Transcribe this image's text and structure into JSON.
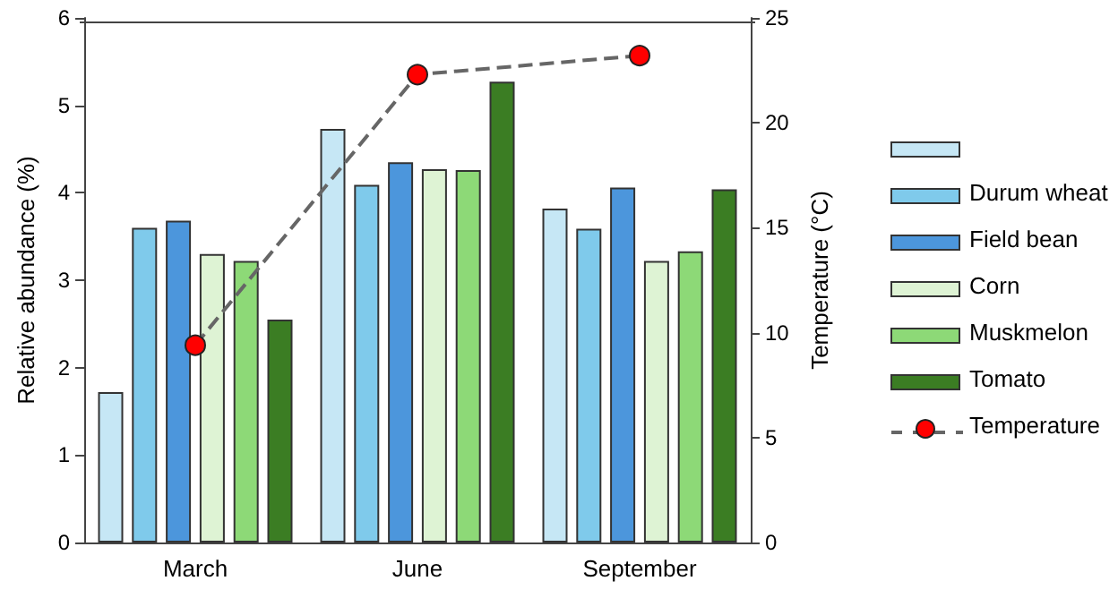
{
  "chart_data": {
    "type": "bar",
    "categories": [
      "March",
      "June",
      "September"
    ],
    "ylabel": "Relative abundance (%)",
    "y2label": "Temperature (°C)",
    "ylim": [
      0,
      6
    ],
    "yticks": [
      0,
      1,
      2,
      3,
      4,
      5,
      6
    ],
    "y2lim": [
      0,
      25
    ],
    "y2ticks": [
      0,
      5,
      10,
      15,
      20,
      25
    ],
    "grid": false,
    "legend": "right",
    "series": [
      {
        "color": "#c6e7f5",
        "values": [
          1.72,
          4.73,
          3.82
        ]
      },
      {
        "name": "Durum wheat",
        "color": "#7fcaeb",
        "values": [
          3.6,
          4.09,
          3.59
        ]
      },
      {
        "name": "Field bean",
        "color": "#4c96dc",
        "values": [
          3.68,
          4.35,
          4.06
        ]
      },
      {
        "name": "Corn",
        "color": "#def3d4",
        "values": [
          3.3,
          4.27,
          3.22
        ]
      },
      {
        "name": "Muskmelon",
        "color": "#8dd977",
        "values": [
          3.22,
          4.26,
          3.33
        ]
      },
      {
        "name": "Tomato",
        "color": "#3b7d23",
        "values": [
          2.55,
          5.27,
          4.04
        ]
      },
      {
        "name": "Temperature",
        "type": "line",
        "axis": "y2",
        "color": "#ff0000",
        "line_style": "dashed",
        "marker": "circle",
        "values": [
          9.4,
          22.3,
          23.2
        ]
      }
    ]
  }
}
